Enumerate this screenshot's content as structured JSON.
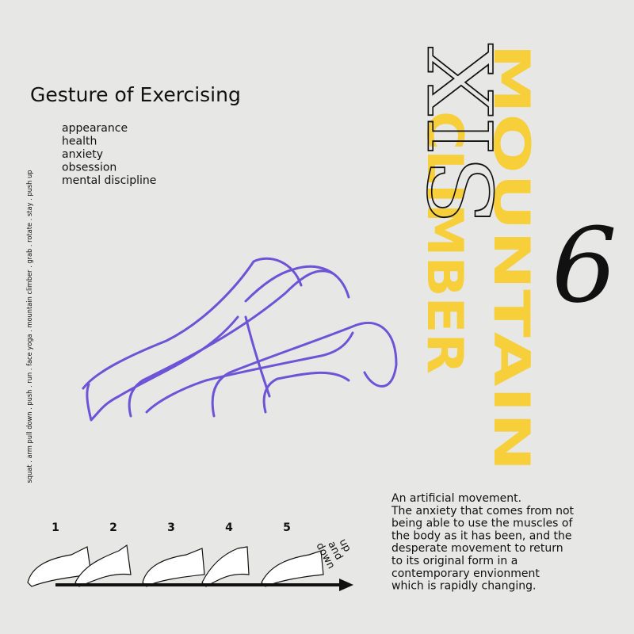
{
  "header": {
    "title": "Gesture of Exercising"
  },
  "keywords": [
    "appearance",
    "health",
    "anxiety",
    "obsession",
    "mental discipline"
  ],
  "side_text": "squat . arm pull down . push . run . face yoga . mountain climber . grab . rotate . stay . push up",
  "feature": {
    "number_word": "SIX",
    "numeral": "6",
    "name_line1": "MOUNTAIN",
    "name_line2": "CLIMBER"
  },
  "steps": {
    "labels": [
      "1",
      "2",
      "3",
      "4",
      "5"
    ],
    "direction": [
      "up",
      "and",
      "down"
    ]
  },
  "description": {
    "lines": [
      "An artificial movement.",
      "The anxiety that comes from not",
      "being able to use the muscles of",
      "the body as it has been, and the",
      "desperate movement to return",
      "to its original form in a",
      "contemporary envionment",
      "which is rapidly changing."
    ]
  }
}
